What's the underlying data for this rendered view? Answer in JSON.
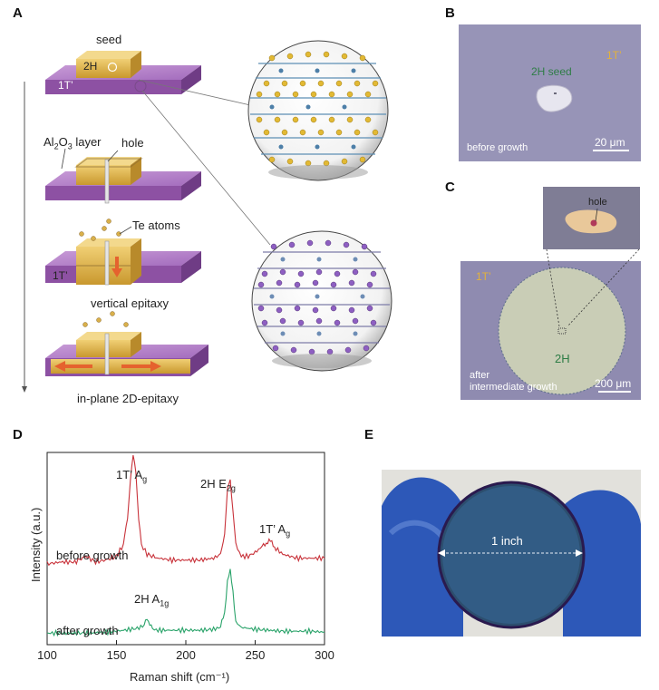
{
  "panels": {
    "A": {
      "label": "A",
      "seed": "seed",
      "seed_phase": "2H",
      "film_phase": "1T’",
      "al2o3_layer": "Al2O3 layer",
      "hole": "hole",
      "te_atoms": "Te atoms",
      "film_phase_step3": "1T’",
      "vertical_epitaxy": "vertical epitaxy",
      "inplane_epitaxy": "in-plane 2D-epitaxy"
    },
    "B": {
      "label": "B",
      "film_phase": "1T’",
      "seed_label": "2H seed",
      "caption": "before growth",
      "scale_bar": "20 μm"
    },
    "C": {
      "label": "C",
      "film_phase": "1T’",
      "domain_phase": "2H",
      "inset_label": "hole",
      "caption_line1": "after",
      "caption_line2": "intermediate growth",
      "scale_bar": "200 μm"
    },
    "D": {
      "label": "D",
      "peak_1t_a": "1T’ Ag",
      "peak_2h_e": "2H E2g",
      "peak_1t_a2": "1T’ Ag",
      "peak_2h_a": "2H A1g",
      "label_before": "before growth",
      "label_after": "after growth"
    },
    "E": {
      "label": "E",
      "measure": "1 inch"
    }
  },
  "colors": {
    "before_line": "#c8323a",
    "after_line": "#2aa36a",
    "film_purple": "#9a5fb0",
    "seed_gold": "#d9b04a",
    "micrograph_bg": "#8f8bb0",
    "arrow_orange": "#e5622e"
  },
  "chart_data": {
    "type": "line",
    "xlabel": "Raman shift (cm⁻¹)",
    "ylabel": "Intensity (a.u.)",
    "xlim": [
      100,
      300
    ],
    "xticks": [
      "100",
      "150",
      "200",
      "250",
      "300"
    ],
    "series": [
      {
        "name": "before growth",
        "x": [
          100,
          110,
          120,
          128,
          135,
          142,
          150,
          155,
          158,
          160,
          162,
          164,
          166,
          168,
          172,
          180,
          190,
          200,
          210,
          220,
          225,
          228,
          230,
          232,
          234,
          236,
          240,
          245,
          250,
          255,
          258,
          260,
          262,
          265,
          270,
          280,
          290,
          300
        ],
        "y": [
          0.42,
          0.43,
          0.43,
          0.46,
          0.43,
          0.44,
          0.46,
          0.52,
          0.66,
          0.86,
          0.98,
          0.9,
          0.66,
          0.52,
          0.47,
          0.45,
          0.44,
          0.44,
          0.44,
          0.45,
          0.47,
          0.58,
          0.8,
          0.86,
          0.7,
          0.52,
          0.46,
          0.46,
          0.48,
          0.51,
          0.53,
          0.54,
          0.53,
          0.5,
          0.47,
          0.45,
          0.45,
          0.45
        ]
      },
      {
        "name": "after growth",
        "x": [
          100,
          110,
          120,
          130,
          140,
          150,
          160,
          165,
          170,
          172,
          174,
          176,
          180,
          190,
          200,
          210,
          220,
          225,
          228,
          230,
          232,
          234,
          236,
          240,
          250,
          260,
          270,
          280,
          290,
          300
        ],
        "y": [
          0.06,
          0.06,
          0.06,
          0.06,
          0.065,
          0.07,
          0.08,
          0.085,
          0.1,
          0.14,
          0.11,
          0.08,
          0.075,
          0.075,
          0.075,
          0.075,
          0.08,
          0.09,
          0.17,
          0.33,
          0.38,
          0.28,
          0.12,
          0.09,
          0.08,
          0.075,
          0.07,
          0.07,
          0.07,
          0.065
        ]
      }
    ]
  }
}
